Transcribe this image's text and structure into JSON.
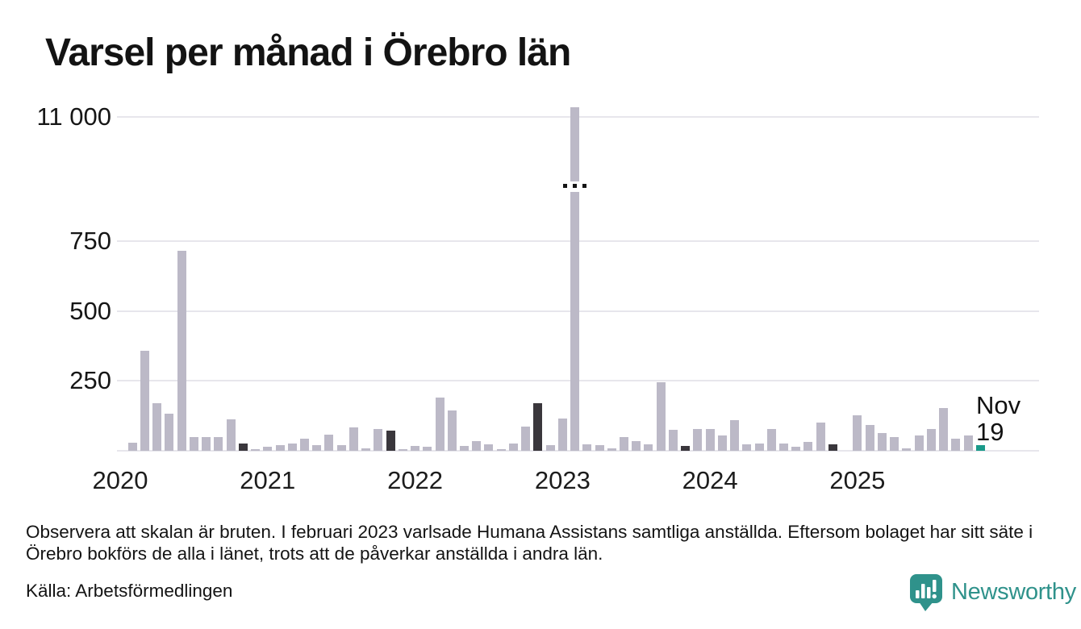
{
  "title": "Varsel per månad i Örebro län",
  "chart_data": {
    "type": "bar",
    "title": "Varsel per månad i Örebro län",
    "xlabel": "",
    "ylabel": "",
    "legend": "none",
    "grid": "horizontal",
    "y_axis": {
      "broken": true,
      "tick_labels": [
        "11 000",
        "750",
        "500",
        "250"
      ],
      "tick_values": [
        11000,
        750,
        500,
        250
      ]
    },
    "x_axis": {
      "tick_labels": [
        "2020",
        "2021",
        "2022",
        "2023",
        "2024",
        "2025"
      ]
    },
    "months": [
      [
        "2020-01",
        0
      ],
      [
        "2020-02",
        30
      ],
      [
        "2020-03",
        358
      ],
      [
        "2020-04",
        170
      ],
      [
        "2020-05",
        133
      ],
      [
        "2020-06",
        715
      ],
      [
        "2020-07",
        50
      ],
      [
        "2020-08",
        50
      ],
      [
        "2020-09",
        50
      ],
      [
        "2020-10",
        112
      ],
      [
        "2020-11",
        25
      ],
      [
        "2020-12",
        4
      ],
      [
        "2021-01",
        14
      ],
      [
        "2021-02",
        20
      ],
      [
        "2021-03",
        26
      ],
      [
        "2021-04",
        44
      ],
      [
        "2021-05",
        21
      ],
      [
        "2021-06",
        57
      ],
      [
        "2021-07",
        21
      ],
      [
        "2021-08",
        85
      ],
      [
        "2021-09",
        9
      ],
      [
        "2021-10",
        78
      ],
      [
        "2021-11",
        73
      ],
      [
        "2021-12",
        4
      ],
      [
        "2022-01",
        17
      ],
      [
        "2022-02",
        13
      ],
      [
        "2022-03",
        190
      ],
      [
        "2022-04",
        143
      ],
      [
        "2022-05",
        17
      ],
      [
        "2022-06",
        35
      ],
      [
        "2022-07",
        23
      ],
      [
        "2022-08",
        4
      ],
      [
        "2022-09",
        26
      ],
      [
        "2022-10",
        87
      ],
      [
        "2022-11",
        170
      ],
      [
        "2022-12",
        20
      ],
      [
        "2023-01",
        115
      ],
      [
        "2023-02",
        11200
      ],
      [
        "2023-03",
        22
      ],
      [
        "2023-04",
        20
      ],
      [
        "2023-05",
        9
      ],
      [
        "2023-06",
        50
      ],
      [
        "2023-07",
        35
      ],
      [
        "2023-08",
        23
      ],
      [
        "2023-09",
        245
      ],
      [
        "2023-10",
        75
      ],
      [
        "2023-11",
        17
      ],
      [
        "2023-12",
        78
      ],
      [
        "2024-01",
        77
      ],
      [
        "2024-02",
        56
      ],
      [
        "2024-03",
        110
      ],
      [
        "2024-04",
        22
      ],
      [
        "2024-05",
        27
      ],
      [
        "2024-06",
        78
      ],
      [
        "2024-07",
        27
      ],
      [
        "2024-08",
        14
      ],
      [
        "2024-09",
        33
      ],
      [
        "2024-10",
        100
      ],
      [
        "2024-11",
        23
      ],
      [
        "2024-12",
        0
      ],
      [
        "2025-01",
        126
      ],
      [
        "2025-02",
        92
      ],
      [
        "2025-03",
        62
      ],
      [
        "2025-04",
        48
      ],
      [
        "2025-05",
        10
      ],
      [
        "2025-06",
        55
      ],
      [
        "2025-07",
        79
      ],
      [
        "2025-08",
        154
      ],
      [
        "2025-09",
        42
      ],
      [
        "2025-10",
        55
      ],
      [
        "2025-11",
        19
      ]
    ],
    "highlights": {
      "default_color": "#bcb9c7",
      "november_months_color": "#3a373c",
      "latest_month_color": "#1a9a8a"
    },
    "latest_point": {
      "month": "2025-11",
      "value": 19,
      "month_label": "Nov",
      "value_label": "19"
    },
    "outlier": {
      "month": "2023-02",
      "value": 11200,
      "note": "bar drawn with axis break, three dots mark the break"
    }
  },
  "footnote": "Observera att skalan är bruten. I februari 2023 varlsade Humana Assistans samtliga anställda. Eftersom bolaget har sitt säte i Örebro bokförs de alla i länet, trots att de påverkar anställda i andra län.",
  "source": "Källa: Arbetsförmedlingen",
  "logo": {
    "text": "Newsworthy",
    "color": "#2f928b"
  }
}
